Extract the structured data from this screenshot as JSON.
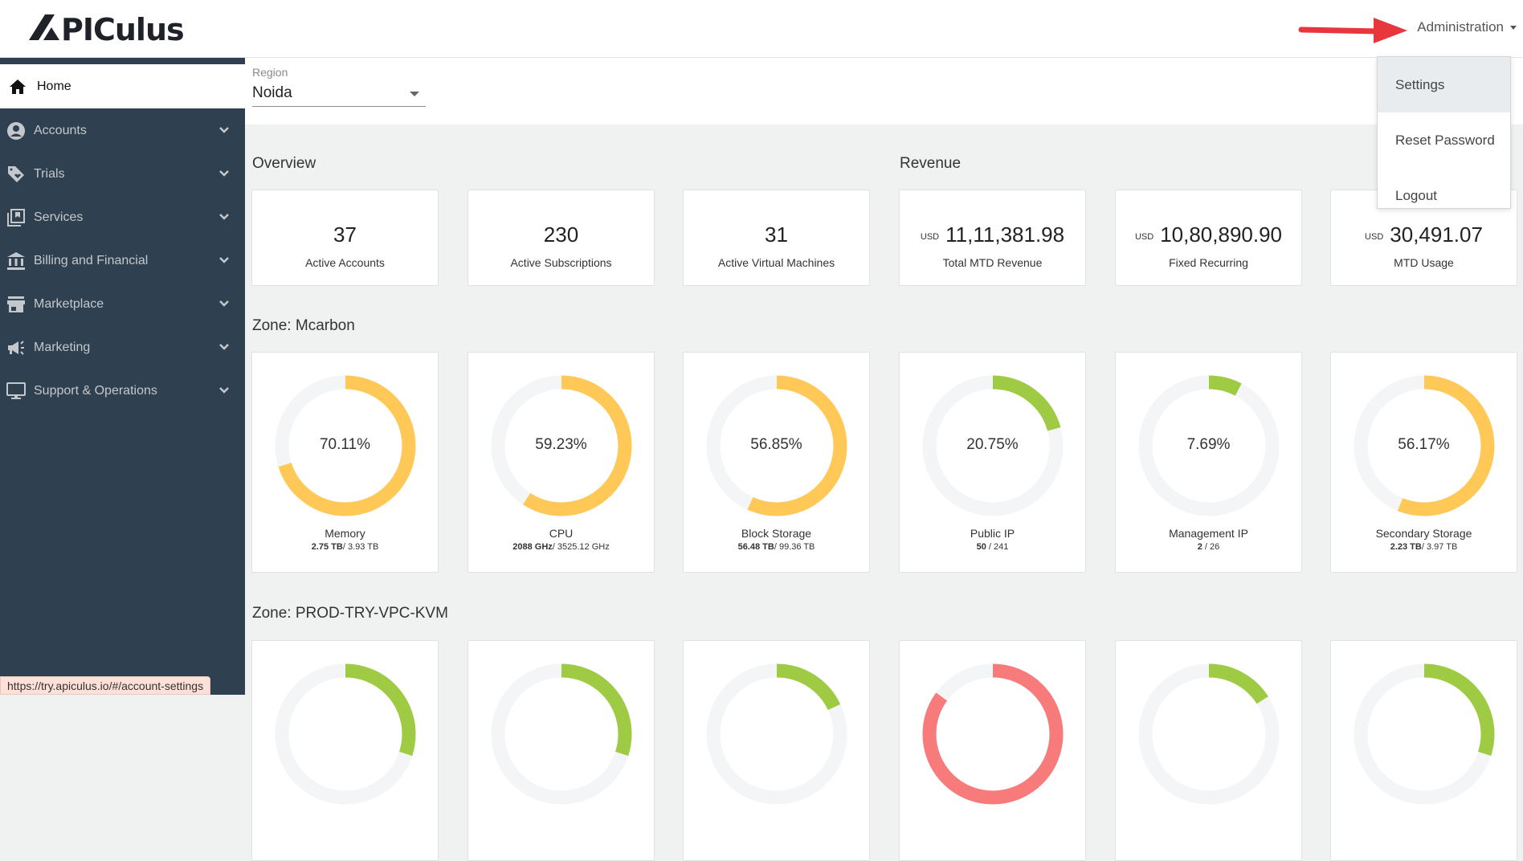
{
  "header": {
    "logo_text": "APICULUS",
    "admin_label": "Administration"
  },
  "admin_menu": {
    "items": [
      {
        "label": "Settings",
        "active": true
      },
      {
        "label": "Reset Password",
        "active": false
      },
      {
        "label": "Logout",
        "active": false
      }
    ]
  },
  "sidebar": {
    "items": [
      {
        "label": "Home",
        "icon": "home-icon",
        "active": true
      },
      {
        "label": "Accounts",
        "icon": "user-circle-icon"
      },
      {
        "label": "Trials",
        "icon": "tag-heart-icon"
      },
      {
        "label": "Services",
        "icon": "collection-icon"
      },
      {
        "label": "Billing and Financial",
        "icon": "bank-icon"
      },
      {
        "label": "Marketplace",
        "icon": "store-icon"
      },
      {
        "label": "Marketing",
        "icon": "megaphone-icon"
      },
      {
        "label": "Support & Operations",
        "icon": "monitor-icon"
      }
    ]
  },
  "region": {
    "label": "Region",
    "value": "Noida"
  },
  "overview": {
    "title": "Overview",
    "cards": [
      {
        "value": "37",
        "label": "Active Accounts"
      },
      {
        "value": "230",
        "label": "Active Subscriptions"
      },
      {
        "value": "31",
        "label": "Active Virtual Machines"
      }
    ]
  },
  "revenue": {
    "title": "Revenue",
    "cards": [
      {
        "currency": "USD",
        "value": "11,11,381.98",
        "label": "Total MTD Revenue"
      },
      {
        "currency": "USD",
        "value": "10,80,890.90",
        "label": "Fixed Recurring"
      },
      {
        "currency": "USD",
        "value": "30,491.07",
        "label": "MTD Usage"
      }
    ]
  },
  "zones": [
    {
      "title": "Zone: Mcarbon",
      "gauges": [
        {
          "pct_text": "70.11%",
          "pct": 70.11,
          "color": "#ffc857",
          "name": "Memory",
          "used": "2.75 TB",
          "total": "/ 3.93 TB"
        },
        {
          "pct_text": "59.23%",
          "pct": 59.23,
          "color": "#ffc857",
          "name": "CPU",
          "used": "2088 GHz",
          "total": "/ 3525.12 GHz"
        },
        {
          "pct_text": "56.85%",
          "pct": 56.85,
          "color": "#ffc857",
          "name": "Block Storage",
          "used": "56.48 TB",
          "total": "/ 99.36 TB"
        },
        {
          "pct_text": "20.75%",
          "pct": 20.75,
          "color": "#9ecb43",
          "name": "Public IP",
          "used": "50",
          "total": " / 241"
        },
        {
          "pct_text": "7.69%",
          "pct": 7.69,
          "color": "#9ecb43",
          "name": "Management IP",
          "used": "2",
          "total": " / 26"
        },
        {
          "pct_text": "56.17%",
          "pct": 56.17,
          "color": "#ffc857",
          "name": "Secondary Storage",
          "used": "2.23 TB",
          "total": "/ 3.97 TB"
        }
      ]
    },
    {
      "title": "Zone: PROD-TRY-VPC-KVM",
      "gauges": [
        {
          "pct": 30,
          "color": "#9ecb43"
        },
        {
          "pct": 30,
          "color": "#9ecb43"
        },
        {
          "pct": 18,
          "color": "#9ecb43"
        },
        {
          "pct": 85,
          "color": "#f77b7b"
        },
        {
          "pct": 16,
          "color": "#9ecb43"
        },
        {
          "pct": 30,
          "color": "#9ecb43"
        }
      ]
    }
  ],
  "colors": {
    "sidebar_bg": "#2f4050",
    "warn": "#ffc857",
    "ok": "#9ecb43",
    "danger": "#f77b7b",
    "track": "#f4f5f6"
  },
  "status_bar": {
    "url": "https://try.apiculus.io/#/account-settings"
  }
}
